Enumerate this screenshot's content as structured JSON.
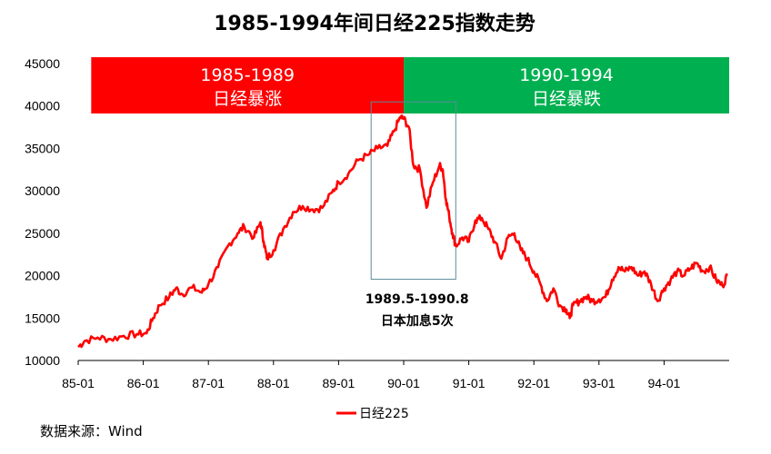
{
  "chart_data": {
    "type": "line",
    "title": "1985-1994年间日经225指数走势",
    "ylim": [
      10000,
      45000
    ],
    "yticks": [
      "45000",
      "40000",
      "35000",
      "30000",
      "25000",
      "20000",
      "15000",
      "10000"
    ],
    "ytick_values": [
      45000,
      40000,
      35000,
      30000,
      25000,
      20000,
      15000,
      10000
    ],
    "xticks": [
      "85-01",
      "86-01",
      "87-01",
      "88-01",
      "89-01",
      "90-01",
      "91-01",
      "92-01",
      "93-01",
      "94-01"
    ],
    "xtick_values": [
      1985,
      1986,
      1987,
      1988,
      1989,
      1990,
      1991,
      1992,
      1993,
      1994
    ],
    "xlim": [
      1985,
      1995
    ],
    "series": [
      {
        "name": "日经225",
        "color": "#ff0000",
        "x": [
          1985.0,
          1985.1,
          1985.3,
          1985.5,
          1985.7,
          1985.9,
          1986.05,
          1986.15,
          1986.25,
          1986.4,
          1986.5,
          1986.6,
          1986.75,
          1986.9,
          1987.0,
          1987.15,
          1987.3,
          1987.45,
          1987.55,
          1987.7,
          1987.8,
          1987.85,
          1987.9,
          1988.0,
          1988.15,
          1988.3,
          1988.45,
          1988.6,
          1988.75,
          1988.9,
          1989.0,
          1989.15,
          1989.3,
          1989.45,
          1989.6,
          1989.75,
          1989.85,
          1989.95,
          1990.0,
          1990.08,
          1990.15,
          1990.25,
          1990.35,
          1990.45,
          1990.55,
          1990.6,
          1990.65,
          1990.7,
          1990.75,
          1990.8,
          1990.9,
          1991.0,
          1991.1,
          1991.2,
          1991.3,
          1991.4,
          1991.5,
          1991.6,
          1991.7,
          1991.8,
          1991.9,
          1992.0,
          1992.1,
          1992.2,
          1992.3,
          1992.4,
          1992.5,
          1992.55,
          1992.6,
          1992.7,
          1992.8,
          1992.9,
          1993.0,
          1993.1,
          1993.2,
          1993.3,
          1993.4,
          1993.5,
          1993.6,
          1993.7,
          1993.8,
          1993.9,
          1994.0,
          1994.1,
          1994.2,
          1994.3,
          1994.4,
          1994.5,
          1994.6,
          1994.7,
          1994.8,
          1994.9,
          1994.97
        ],
        "values": [
          11600,
          12300,
          12700,
          12500,
          12900,
          13100,
          13200,
          15000,
          16500,
          17500,
          18500,
          17800,
          18600,
          18000,
          19000,
          21000,
          23500,
          25000,
          25800,
          24500,
          26300,
          24000,
          22000,
          23000,
          25500,
          27500,
          28200,
          27800,
          28000,
          29800,
          31000,
          32000,
          33600,
          34200,
          35000,
          35300,
          37000,
          38700,
          38500,
          37500,
          33000,
          32500,
          28000,
          31000,
          33000,
          32500,
          29000,
          27000,
          25000,
          23500,
          24500,
          24000,
          26500,
          26800,
          25500,
          24000,
          22000,
          24500,
          25000,
          23000,
          22000,
          20500,
          19000,
          17000,
          18500,
          16500,
          16000,
          15000,
          16500,
          17000,
          17500,
          17000,
          17200,
          17500,
          19500,
          21000,
          20500,
          21000,
          20000,
          20500,
          19000,
          17000,
          18500,
          19500,
          20500,
          20000,
          20800,
          21500,
          20500,
          21000,
          19500,
          18800,
          20000
        ]
      }
    ],
    "legend": {
      "position": "bottom",
      "label": "日经225"
    },
    "bands": [
      {
        "label_top": "1985-1989",
        "label_bottom": "日经暴涨",
        "color": "#ff0000",
        "x_start": 1985.2,
        "x_end": 1990.0
      },
      {
        "label_top": "1990-1994",
        "label_bottom": "日经暴跌",
        "color": "#00b050",
        "x_start": 1990.0,
        "x_end": 1995.0
      }
    ],
    "annotation": {
      "line1": "1989.5-1990.8",
      "line2": "日本加息5次",
      "x_start": 1989.5,
      "x_end": 1990.8,
      "y_low": 20000,
      "y_high": 39200,
      "color": "#5b8b9a"
    },
    "grid": false
  },
  "source": "数据来源：Wind"
}
